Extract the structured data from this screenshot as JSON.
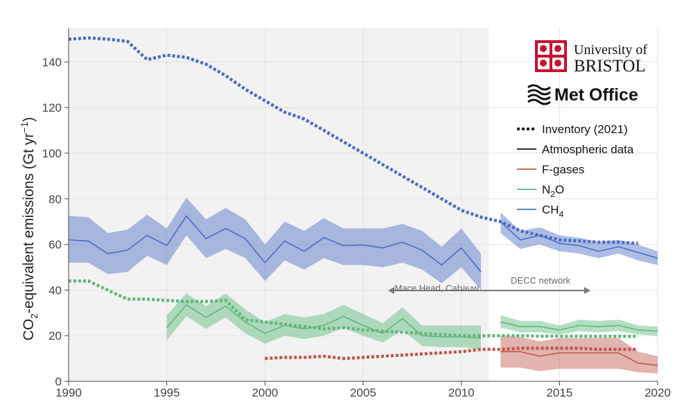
{
  "chart_data": {
    "type": "line",
    "ylabel_main": "CO",
    "ylabel_sub": "2",
    "ylabel_rest": "-equivalent emissions (Gt yr",
    "ylabel_sup": "−1",
    "ylabel_close": ")",
    "xlim": [
      1990,
      2020
    ],
    "ylim": [
      0,
      155
    ],
    "x_ticks": [
      "1990",
      "1995",
      "2000",
      "2005",
      "2010",
      "2015",
      "2020"
    ],
    "y_ticks": [
      "0",
      "20",
      "40",
      "60",
      "80",
      "100",
      "120",
      "140"
    ],
    "grid": true,
    "shaded_region": [
      1990,
      2011.4
    ],
    "legend": {
      "placement": "right",
      "items": [
        {
          "label": "Inventory (2021)",
          "sub": "",
          "style": "dotted",
          "color": "#222222"
        },
        {
          "label": "Atmospheric data",
          "sub": "",
          "style": "solid",
          "color": "#111111"
        },
        {
          "label": "F-gases",
          "sub": "",
          "style": "solid",
          "color": "#c0564b"
        },
        {
          "label": "N",
          "sub": "2",
          "tail": "O",
          "style": "solid",
          "color": "#5cb87a"
        },
        {
          "label": "CH",
          "sub": "4",
          "tail": "",
          "style": "solid",
          "color": "#4a6cc4"
        }
      ]
    },
    "annotations": {
      "left_network": "Mace Head, Cabauw",
      "right_network": "DECC network"
    },
    "series": [
      {
        "name": "CH4 atmospheric",
        "kind": "band",
        "color": "#4a6cc4",
        "segments": [
          {
            "x": [
              1990,
              1991,
              1992,
              1993,
              1994,
              1995,
              1996,
              1997,
              1998,
              1999,
              2000,
              2001,
              2002,
              2003,
              2004,
              2005,
              2006,
              2007,
              2008,
              2009,
              2010,
              2011
            ],
            "y": [
              62,
              61.5,
              56,
              57.5,
              64,
              59.5,
              72.5,
              62.5,
              67,
              62.5,
              52,
              61.5,
              57,
              63,
              59.5,
              59.8,
              58.5,
              61,
              57.5,
              51,
              58.5,
              48
            ],
            "lo": [
              52,
              52,
              47,
              48,
              55,
              51,
              64,
              54,
              58,
              54,
              44,
              53,
              49,
              54,
              51,
              51,
              50,
              52,
              49,
              43,
              50,
              40
            ],
            "hi": [
              72.5,
              72,
              65,
              66.5,
              73,
              67,
              80.5,
              71,
              76,
              71,
              60,
              70,
              66,
              71.5,
              67,
              67,
              67,
              69,
              66,
              59,
              67,
              56
            ]
          },
          {
            "x": [
              2012,
              2013,
              2014,
              2015,
              2016,
              2017,
              2018,
              2019,
              2020
            ],
            "y": [
              70,
              62,
              64,
              60.5,
              59.5,
              57,
              59,
              56.5,
              54
            ],
            "lo": [
              65,
              58,
              60,
              57,
              56,
              54,
              56,
              53,
              51
            ],
            "hi": [
              74,
              66,
              67.5,
              64,
              63,
              61,
              62,
              60,
              57
            ]
          }
        ]
      },
      {
        "name": "N2O atmospheric",
        "kind": "band",
        "color": "#5cb87a",
        "segments": [
          {
            "x": [
              1995,
              1996,
              1997,
              1998,
              1999,
              2000,
              2001,
              2002,
              2003,
              2004,
              2005,
              2006,
              2007,
              2008,
              2009,
              2010,
              2011
            ],
            "y": [
              23.5,
              33.5,
              28,
              33,
              26,
              21,
              24.5,
              23,
              24.5,
              28.5,
              24.5,
              21,
              27.5,
              20,
              19.5,
              19.5,
              19
            ],
            "lo": [
              18,
              28.5,
              23,
              28,
              21,
              16.5,
              20,
              18.5,
              20,
              23.5,
              20,
              17,
              22.5,
              15.5,
              15,
              15,
              14
            ],
            "hi": [
              29,
              38.5,
              33,
              38.5,
              31.5,
              26,
              29.5,
              28,
              29.5,
              33.5,
              29.5,
              25.5,
              32.5,
              24.5,
              24.5,
              24.5,
              24.5
            ]
          },
          {
            "x": [
              2012,
              2013,
              2014,
              2015,
              2016,
              2017,
              2018,
              2019,
              2020
            ],
            "y": [
              26,
              24,
              24,
              22.5,
              24.5,
              24,
              24.5,
              22.5,
              22
            ],
            "lo": [
              23.5,
              21.5,
              21.5,
              20.5,
              22,
              21.5,
              22,
              20.5,
              20
            ],
            "hi": [
              29,
              26.5,
              26.5,
              24.5,
              27,
              26.5,
              27,
              24.5,
              24
            ]
          }
        ]
      },
      {
        "name": "F-gases atmospheric",
        "kind": "band",
        "color": "#c0564b",
        "segments": [
          {
            "x": [
              2012,
              2013,
              2014,
              2015,
              2016,
              2017,
              2018,
              2019,
              2020
            ],
            "y": [
              13,
              13,
              11,
              12.5,
              12.5,
              12.5,
              12.5,
              8,
              7
            ],
            "lo": [
              6,
              6,
              4.5,
              5.5,
              5.5,
              5.5,
              5.5,
              4,
              3.5
            ],
            "hi": [
              20,
              19.5,
              17.5,
              19,
              19,
              19,
              19,
              13,
              11
            ]
          }
        ]
      },
      {
        "name": "CH4 inventory",
        "kind": "dotted",
        "color": "#4a6cc4",
        "x": [
          1990,
          1991,
          1992,
          1993,
          1994,
          1995,
          1996,
          1997,
          1998,
          1999,
          2000,
          2001,
          2002,
          2003,
          2004,
          2005,
          2006,
          2007,
          2008,
          2009,
          2010,
          2011,
          2012,
          2013,
          2014,
          2015,
          2016,
          2017,
          2018,
          2019
        ],
        "y": [
          150,
          150.5,
          150,
          149,
          141,
          143,
          142,
          139,
          134,
          128,
          123,
          118,
          115,
          110,
          105,
          100,
          95,
          90,
          85,
          80,
          75,
          72,
          70,
          66,
          64,
          62,
          61.5,
          61,
          61,
          60.5
        ]
      },
      {
        "name": "N2O inventory",
        "kind": "dotted",
        "color": "#5cb87a",
        "x": [
          1990,
          1991,
          1992,
          1993,
          1994,
          1995,
          1996,
          1997,
          1998,
          1999,
          2000,
          2001,
          2002,
          2003,
          2004,
          2005,
          2006,
          2007,
          2008,
          2009,
          2010,
          2011,
          2012,
          2013,
          2014,
          2015,
          2016,
          2017,
          2018,
          2019
        ],
        "y": [
          44,
          44,
          40,
          36,
          36,
          35.5,
          35,
          35,
          35.5,
          27,
          26,
          25,
          24,
          23,
          23.5,
          22.5,
          22,
          21.5,
          21,
          20.5,
          20,
          20,
          20,
          20,
          19.8,
          19.8,
          19.8,
          19.7,
          19.7,
          19.7
        ]
      },
      {
        "name": "F-gases inventory",
        "kind": "dotted",
        "color": "#c0564b",
        "x": [
          2000,
          2001,
          2002,
          2003,
          2004,
          2005,
          2006,
          2007,
          2008,
          2009,
          2010,
          2011,
          2012,
          2013,
          2014,
          2015,
          2016,
          2017,
          2018,
          2019
        ],
        "y": [
          10,
          10.5,
          10.5,
          11,
          10,
          10.5,
          11,
          11.5,
          12,
          12.5,
          13,
          14,
          14,
          14.5,
          14.5,
          14.5,
          14.5,
          14,
          14,
          14
        ]
      }
    ]
  },
  "logos": {
    "bristol_line1": "University of",
    "bristol_line2": "BRISTOL",
    "met_office": "Met Office"
  }
}
